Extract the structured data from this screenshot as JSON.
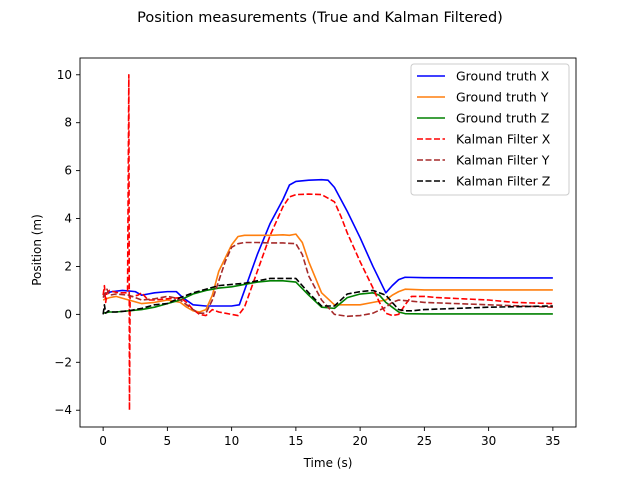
{
  "chart_data": {
    "type": "line",
    "title": "Position measurements (True and Kalman Filtered)",
    "xlabel": "Time (s)",
    "ylabel": "Position (m)",
    "xlim": [
      -1.8,
      36.8
    ],
    "ylim": [
      -4.7,
      10.7
    ],
    "xticks": [
      0,
      5,
      10,
      15,
      20,
      25,
      30,
      35
    ],
    "yticks": [
      -4,
      -2,
      0,
      2,
      4,
      6,
      8,
      10
    ],
    "xtick_labels": [
      "0",
      "5",
      "10",
      "15",
      "20",
      "25",
      "30",
      "35"
    ],
    "ytick_labels": [
      "−4",
      "−2",
      "0",
      "2",
      "4",
      "6",
      "8",
      "10"
    ],
    "grid": false,
    "legend_position": "top-right",
    "series": [
      {
        "name": "Ground truth X",
        "color": "#0000ff",
        "style": "solid",
        "x": [
          0,
          0.3,
          0.7,
          1.5,
          2.5,
          3,
          3.5,
          4,
          5,
          5.7,
          6.2,
          7,
          8,
          9,
          10,
          10.6,
          11,
          12,
          13,
          14,
          14.5,
          15,
          16,
          17,
          17.5,
          18,
          19,
          20,
          21,
          22,
          22.5,
          23,
          23.5,
          25,
          30,
          35
        ],
        "y": [
          0.8,
          0.9,
          0.95,
          1.0,
          0.95,
          0.8,
          0.85,
          0.9,
          0.95,
          0.95,
          0.7,
          0.4,
          0.35,
          0.35,
          0.35,
          0.4,
          1.0,
          2.5,
          3.8,
          4.8,
          5.4,
          5.55,
          5.6,
          5.62,
          5.6,
          5.3,
          4.3,
          3.2,
          2.0,
          0.9,
          1.2,
          1.45,
          1.55,
          1.53,
          1.52,
          1.52
        ]
      },
      {
        "name": "Ground truth Y",
        "color": "#ff7f0e",
        "style": "solid",
        "x": [
          0,
          0.5,
          1,
          2,
          3,
          4,
          5,
          6,
          6.5,
          7,
          7.5,
          8,
          8.5,
          9,
          10,
          10.5,
          11,
          12,
          13,
          14,
          14.5,
          15,
          15.5,
          16,
          17,
          18,
          20,
          21,
          22,
          22.5,
          23,
          23.5,
          25,
          30,
          35
        ],
        "y": [
          0.6,
          0.7,
          0.75,
          0.6,
          0.45,
          0.5,
          0.6,
          0.5,
          0.3,
          0.15,
          0.1,
          0.2,
          0.8,
          1.8,
          2.9,
          3.25,
          3.3,
          3.3,
          3.3,
          3.32,
          3.3,
          3.35,
          3.0,
          2.2,
          0.9,
          0.4,
          0.4,
          0.5,
          0.6,
          0.8,
          0.95,
          1.05,
          1.02,
          1.02,
          1.02
        ]
      },
      {
        "name": "Ground truth Z",
        "color": "#008000",
        "style": "solid",
        "x": [
          0,
          0.5,
          1,
          2,
          3,
          4,
          5,
          6,
          7,
          8,
          9,
          10,
          11,
          12,
          13,
          14,
          15,
          16,
          17,
          18,
          19,
          20,
          21,
          21.5,
          22,
          22.5,
          23,
          23.5,
          25,
          30,
          35
        ],
        "y": [
          0.05,
          0.1,
          0.1,
          0.15,
          0.2,
          0.3,
          0.45,
          0.6,
          0.85,
          1.0,
          1.1,
          1.15,
          1.25,
          1.35,
          1.4,
          1.4,
          1.35,
          0.8,
          0.3,
          0.25,
          0.7,
          0.85,
          0.9,
          0.8,
          0.5,
          0.3,
          0.1,
          0.03,
          0.02,
          0.02,
          0.02
        ]
      },
      {
        "name": "Kalman Filter X",
        "color": "#ff0000",
        "style": "dashed",
        "x": [
          0,
          0.1,
          0.2,
          0.3,
          0.5,
          0.8,
          1.2,
          1.6,
          1.9,
          2.0,
          2.05,
          2.1,
          2.3,
          2.7,
          3,
          3.5,
          4,
          5,
          6,
          6.5,
          7,
          7.5,
          8,
          8.5,
          9,
          9.5,
          10,
          10.5,
          11,
          12,
          13,
          14,
          14.5,
          15,
          16,
          17,
          18,
          18.5,
          19,
          20,
          21,
          21.5,
          22,
          22.5,
          23,
          23.5,
          24,
          25,
          26,
          28,
          30,
          32,
          35
        ],
        "y": [
          0.8,
          1.2,
          0.5,
          0.9,
          1.0,
          0.95,
          0.9,
          0.9,
          0.9,
          10.0,
          -4.0,
          0.75,
          0.75,
          0.8,
          0.9,
          0.6,
          0.6,
          0.65,
          0.7,
          0.5,
          0.2,
          0.0,
          -0.05,
          0.2,
          0.1,
          0.05,
          0.0,
          -0.05,
          0.3,
          1.8,
          3.3,
          4.5,
          4.9,
          5.0,
          5.02,
          5.0,
          4.7,
          4.1,
          3.4,
          2.2,
          1.1,
          0.5,
          0.05,
          -0.05,
          0.0,
          0.4,
          0.75,
          0.75,
          0.7,
          0.65,
          0.6,
          0.5,
          0.45
        ]
      },
      {
        "name": "Kalman Filter Y",
        "color": "#a52a2a",
        "style": "dashed",
        "x": [
          0,
          0.3,
          0.5,
          1,
          2,
          3,
          4,
          5,
          5.5,
          6,
          6.5,
          7,
          7.5,
          8,
          8.5,
          9,
          9.5,
          10,
          10.5,
          11,
          12,
          13,
          14,
          15,
          15.5,
          16,
          17,
          18,
          19,
          20,
          21,
          22,
          22.5,
          23,
          24,
          25,
          30,
          35
        ],
        "y": [
          0.7,
          1.05,
          0.8,
          0.85,
          0.8,
          0.6,
          0.65,
          0.75,
          0.7,
          0.6,
          0.4,
          0.2,
          0.05,
          0.05,
          0.6,
          1.4,
          2.2,
          2.8,
          2.95,
          3.0,
          3.0,
          2.98,
          2.98,
          2.95,
          2.5,
          1.6,
          0.6,
          0.0,
          -0.08,
          -0.05,
          0.05,
          0.3,
          0.5,
          0.6,
          0.55,
          0.5,
          0.4,
          0.3
        ]
      },
      {
        "name": "Kalman Filter Z",
        "color": "#000000",
        "style": "dashed",
        "x": [
          0,
          0.1,
          0.2,
          0.4,
          0.7,
          1,
          2,
          3,
          4,
          5,
          6,
          7,
          8,
          9,
          10,
          11,
          12,
          13,
          14,
          15,
          16,
          17,
          18,
          19,
          20,
          21,
          21.5,
          22,
          22.5,
          23,
          23.5,
          24,
          25,
          30,
          35
        ],
        "y": [
          0.0,
          0.4,
          0.05,
          0.15,
          0.1,
          0.1,
          0.15,
          0.25,
          0.4,
          0.45,
          0.7,
          0.9,
          1.05,
          1.2,
          1.25,
          1.3,
          1.4,
          1.5,
          1.5,
          1.5,
          0.9,
          0.35,
          0.35,
          0.85,
          0.95,
          1.0,
          0.9,
          0.8,
          0.5,
          0.2,
          0.15,
          0.15,
          0.2,
          0.3,
          0.35
        ]
      }
    ]
  }
}
